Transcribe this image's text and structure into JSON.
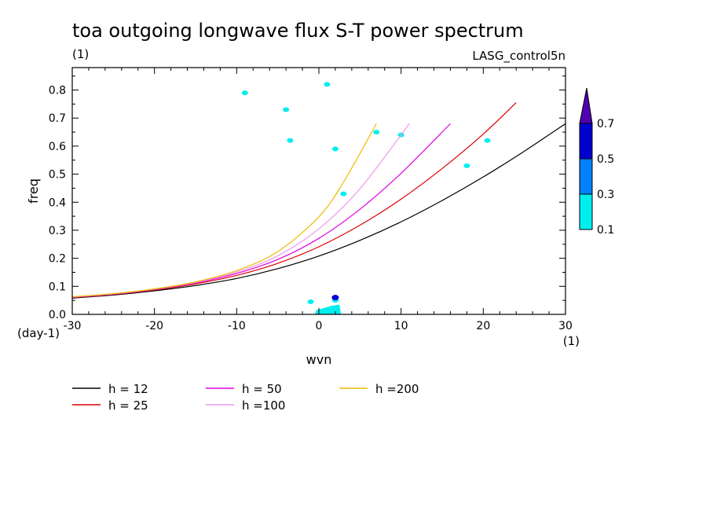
{
  "chart_data": {
    "type": "line",
    "title": "toa outgoing longwave flux S-T power spectrum",
    "title_units": "(1)",
    "subtitle_right": "LASG_control5n",
    "xlabel": "wvn",
    "ylabel": "freq",
    "x_units": "(1)",
    "y_units": "(day-1)",
    "xlim": [
      -30,
      30
    ],
    "ylim": [
      0,
      0.88
    ],
    "x_ticks": [
      "-30",
      "-20",
      "-10",
      "0",
      "10",
      "20",
      "30"
    ],
    "x_tick_values": [
      -30,
      -20,
      -10,
      0,
      10,
      20,
      30
    ],
    "y_ticks": [
      "0.0",
      "0.1",
      "0.2",
      "0.3",
      "0.4",
      "0.5",
      "0.6",
      "0.7",
      "0.8"
    ],
    "y_tick_values": [
      0,
      0.1,
      0.2,
      0.3,
      0.4,
      0.5,
      0.6,
      0.7,
      0.8
    ],
    "grid": false,
    "legend_position": "below",
    "series": [
      {
        "name": "h = 12",
        "color": "#000000",
        "x": [
          -30,
          -25,
          -20,
          -15,
          -10,
          -5,
          0,
          5,
          10,
          15,
          20,
          25,
          30
        ],
        "y": [
          0.058,
          0.069,
          0.084,
          0.103,
          0.128,
          0.163,
          0.208,
          0.264,
          0.33,
          0.406,
          0.49,
          0.582,
          0.68
        ]
      },
      {
        "name": "h = 25",
        "color": "#e00000",
        "x": [
          -30,
          -25,
          -20,
          -15,
          -10,
          -5,
          0,
          5,
          10,
          15,
          20,
          24
        ],
        "y": [
          0.06,
          0.071,
          0.087,
          0.109,
          0.139,
          0.182,
          0.241,
          0.318,
          0.411,
          0.52,
          0.643,
          0.755
        ]
      },
      {
        "name": "h = 50",
        "color": "#e000e0",
        "x": [
          -30,
          -25,
          -20,
          -15,
          -10,
          -5,
          0,
          5,
          10,
          16
        ],
        "y": [
          0.061,
          0.072,
          0.089,
          0.112,
          0.146,
          0.196,
          0.271,
          0.375,
          0.503,
          0.68
        ]
      },
      {
        "name": "h =100",
        "color": "#ee99ee",
        "x": [
          -30,
          -25,
          -20,
          -15,
          -10,
          -5,
          0,
          5,
          11
        ],
        "y": [
          0.062,
          0.073,
          0.09,
          0.114,
          0.151,
          0.209,
          0.305,
          0.448,
          0.68
        ]
      },
      {
        "name": "h =200",
        "color": "#eebb00",
        "x": [
          -30,
          -25,
          -20,
          -15,
          -10,
          -5,
          0,
          3,
          7
        ],
        "y": [
          0.063,
          0.074,
          0.091,
          0.116,
          0.156,
          0.224,
          0.348,
          0.472,
          0.68
        ]
      }
    ],
    "colorbar": {
      "labels": [
        "0.1",
        "0.3",
        "0.5",
        "0.7"
      ],
      "colors": [
        "#00eeee",
        "#0080ff",
        "#0000d0",
        "#5000b0"
      ]
    },
    "shaded_spots": [
      {
        "x": 2.0,
        "y": 0.05,
        "level": 0
      },
      {
        "x": 2.0,
        "y": 0.06,
        "level": 2
      },
      {
        "x": 1.5,
        "y": 0.02,
        "level": 0
      },
      {
        "x": -1.0,
        "y": 0.045,
        "level": 0
      },
      {
        "x": 3.0,
        "y": 0.43,
        "level": 0
      },
      {
        "x": 1.0,
        "y": 0.82,
        "level": 0
      },
      {
        "x": -4.0,
        "y": 0.73,
        "level": 0
      },
      {
        "x": -3.5,
        "y": 0.62,
        "level": 0
      },
      {
        "x": 7.0,
        "y": 0.65,
        "level": 0
      },
      {
        "x": 10.0,
        "y": 0.64,
        "level": 0
      },
      {
        "x": 18.0,
        "y": 0.53,
        "level": 0
      },
      {
        "x": 20.5,
        "y": 0.62,
        "level": 0
      },
      {
        "x": 2.0,
        "y": 0.59,
        "level": 0
      },
      {
        "x": -9.0,
        "y": 0.79,
        "level": 0
      }
    ]
  }
}
